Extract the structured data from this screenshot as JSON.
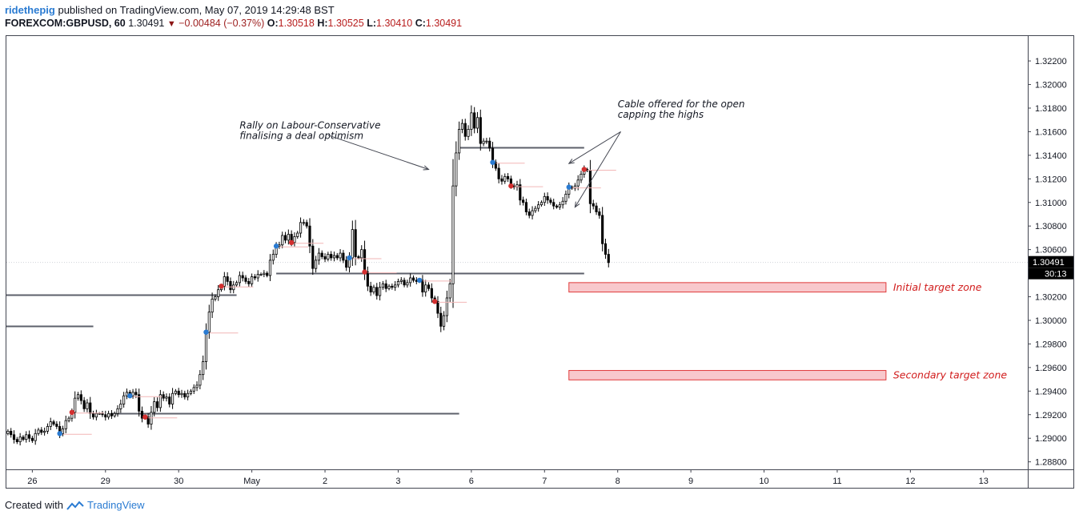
{
  "header": {
    "user": "ridethepig",
    "published": "published on TradingView.com, May 07, 2019 14:29:48 BST",
    "symbol": "FOREXCOM:GBPUSD, 60",
    "last": "1.30491",
    "change": "−0.00484 (−0.37%)",
    "o_label": "O:",
    "o_value": "1.30518",
    "h_label": "H:",
    "h_value": "1.30525",
    "l_label": "L:",
    "l_value": "1.30410",
    "c_label": "C:",
    "c_value": "1.30491"
  },
  "footer": {
    "created": "Created with",
    "brand": "TradingView"
  },
  "colors": {
    "bull": "#ffffff",
    "bear": "#000000",
    "zone": "#f8c8cc",
    "zone_border": "#e03a3a",
    "zone_text": "#d11c1c",
    "buy_dot": "#2a7bd2",
    "sell_dot": "#d32f2f"
  },
  "chart_data": {
    "type": "candlestick",
    "symbol": "FOREXCOM:GBPUSD",
    "interval": "60",
    "ylim": [
      1.2875,
      1.3235
    ],
    "y_ticks": [
      "1.32200",
      "1.32000",
      "1.31800",
      "1.31600",
      "1.31400",
      "1.31200",
      "1.31000",
      "1.30800",
      "1.30600",
      "1.30200",
      "1.30000",
      "1.29800",
      "1.29600",
      "1.29400",
      "1.29200",
      "1.29000",
      "1.28800"
    ],
    "y_tick_values": [
      1.322,
      1.32,
      1.318,
      1.316,
      1.314,
      1.312,
      1.31,
      1.308,
      1.306,
      1.302,
      1.3,
      1.298,
      1.296,
      1.294,
      1.292,
      1.29,
      1.288
    ],
    "x_ticks": [
      {
        "label": "26",
        "idx": 8
      },
      {
        "label": "29",
        "idx": 32
      },
      {
        "label": "30",
        "idx": 56
      },
      {
        "label": "May",
        "idx": 80
      },
      {
        "label": "2",
        "idx": 104
      },
      {
        "label": "3",
        "idx": 128
      },
      {
        "label": "6",
        "idx": 152
      },
      {
        "label": "7",
        "idx": 176
      },
      {
        "label": "8",
        "idx": 200
      },
      {
        "label": "9",
        "idx": 224
      },
      {
        "label": "10",
        "idx": 248
      },
      {
        "label": "11",
        "idx": 272
      },
      {
        "label": "12",
        "idx": 296
      },
      {
        "label": "13",
        "idx": 320
      }
    ],
    "x_index_range": [
      -0.5,
      334.5
    ],
    "close_series": [
      1.2906,
      1.2903,
      1.2899,
      1.2897,
      1.2901,
      1.2899,
      1.2903,
      1.29,
      1.2898,
      1.2904,
      1.2907,
      1.2905,
      1.2906,
      1.291,
      1.2914,
      1.2912,
      1.291,
      1.2904,
      1.2908,
      1.2915,
      1.2917,
      1.2922,
      1.2934,
      1.2937,
      1.2932,
      1.2925,
      1.293,
      1.2921,
      1.2918,
      1.2921,
      1.2921,
      1.292,
      1.2918,
      1.2921,
      1.2919,
      1.2921,
      1.2925,
      1.2929,
      1.2936,
      1.2939,
      1.2936,
      1.2939,
      1.2937,
      1.2923,
      1.2917,
      1.2918,
      1.2912,
      1.2922,
      1.2931,
      1.2926,
      1.2937,
      1.2934,
      1.2935,
      1.2929,
      1.2938,
      1.294,
      1.2937,
      1.2938,
      1.2935,
      1.2938,
      1.294,
      1.2943,
      1.2945,
      1.2954,
      1.2965,
      1.299,
      1.3007,
      1.3018,
      1.302,
      1.3026,
      1.3029,
      1.3037,
      1.3033,
      1.3026,
      1.303,
      1.3032,
      1.3038,
      1.3036,
      1.3033,
      1.3031,
      1.3037,
      1.3036,
      1.3039,
      1.3039,
      1.304,
      1.3038,
      1.3051,
      1.3056,
      1.3063,
      1.3064,
      1.3072,
      1.3068,
      1.3073,
      1.3066,
      1.3071,
      1.3074,
      1.3083,
      1.3083,
      1.308,
      1.3063,
      1.3044,
      1.3051,
      1.3057,
      1.3054,
      1.3052,
      1.3056,
      1.3053,
      1.3055,
      1.3053,
      1.3057,
      1.3051,
      1.3045,
      1.3053,
      1.3077,
      1.3054,
      1.3053,
      1.306,
      1.3041,
      1.3029,
      1.3024,
      1.3028,
      1.3021,
      1.3028,
      1.3031,
      1.3027,
      1.3029,
      1.3028,
      1.303,
      1.3033,
      1.3034,
      1.303,
      1.3032,
      1.3036,
      1.3034,
      1.3033,
      1.3034,
      1.3024,
      1.303,
      1.3027,
      1.3019,
      1.3016,
      1.3006,
      1.2995,
      1.3004,
      1.3019,
      1.3031,
      1.3114,
      1.3142,
      1.3162,
      1.3167,
      1.3156,
      1.3162,
      1.3176,
      1.3163,
      1.3172,
      1.315,
      1.3152,
      1.3152,
      1.3146,
      1.3134,
      1.3129,
      1.312,
      1.3118,
      1.3122,
      1.312,
      1.3114,
      1.3113,
      1.3115,
      1.3102,
      1.31,
      1.3092,
      1.3089,
      1.3093,
      1.3095,
      1.3098,
      1.31,
      1.3105,
      1.3102,
      1.31,
      1.3097,
      1.3096,
      1.3098,
      1.3101,
      1.3107,
      1.3113,
      1.3112,
      1.3114,
      1.3119,
      1.3124,
      1.3128,
      1.3127,
      1.3099,
      1.3097,
      1.3092,
      1.3089,
      1.3065,
      1.3056,
      1.3049
    ],
    "horizontal_levels": [
      {
        "price": 1.3022,
        "from_idx": -0.5,
        "to_idx": 75
      },
      {
        "price": 1.2995,
        "from_idx": -0.5,
        "to_idx": 28
      },
      {
        "price": 1.2921,
        "from_idx": 34,
        "to_idx": 148
      },
      {
        "price": 1.304,
        "from_idx": 88,
        "to_idx": 189
      },
      {
        "price": 1.3147,
        "from_idx": 148,
        "to_idx": 189
      }
    ],
    "zones": [
      {
        "label": "Initial target zone",
        "top": 1.3032,
        "bottom": 1.3024,
        "from_idx": 184,
        "to_idx": 288
      },
      {
        "label": "Secondary target zone",
        "top": 1.29575,
        "bottom": 1.29495,
        "from_idx": 184,
        "to_idx": 288
      }
    ],
    "annotations": [
      {
        "text": "Rally on Labour-Conservative\nfinalising a deal optimism",
        "anchor_idx": 76,
        "anchor_price": 1.31625,
        "arrow_from": [
          105,
          1.3157
        ],
        "arrow_to": [
          138,
          1.3128
        ]
      },
      {
        "text": "Cable offered for the open\ncapping the highs",
        "anchor_idx": 200,
        "anchor_price": 1.31805,
        "arrows": [
          {
            "from": [
              201,
              1.316
            ],
            "to": [
              184,
              1.3133
            ]
          },
          {
            "from": [
              201,
              1.316
            ],
            "to": [
              186,
              1.3096
            ]
          }
        ]
      }
    ],
    "signals": [
      {
        "type": "sell",
        "idx": 21
      },
      {
        "type": "buy",
        "idx": 17
      },
      {
        "type": "buy",
        "idx": 40
      },
      {
        "type": "sell",
        "idx": 45
      },
      {
        "type": "buy",
        "idx": 65
      },
      {
        "type": "sell",
        "idx": 70
      },
      {
        "type": "buy",
        "idx": 88
      },
      {
        "type": "sell",
        "idx": 93
      },
      {
        "type": "buy",
        "idx": 112
      },
      {
        "type": "sell",
        "idx": 117
      },
      {
        "type": "buy",
        "idx": 135
      },
      {
        "type": "sell",
        "idx": 140
      },
      {
        "type": "buy",
        "idx": 159
      },
      {
        "type": "sell",
        "idx": 165
      },
      {
        "type": "buy",
        "idx": 184
      },
      {
        "type": "sell",
        "idx": 189
      }
    ],
    "last_price_label": "1.30491",
    "countdown_label": "30:13",
    "last_price": 1.30491
  }
}
